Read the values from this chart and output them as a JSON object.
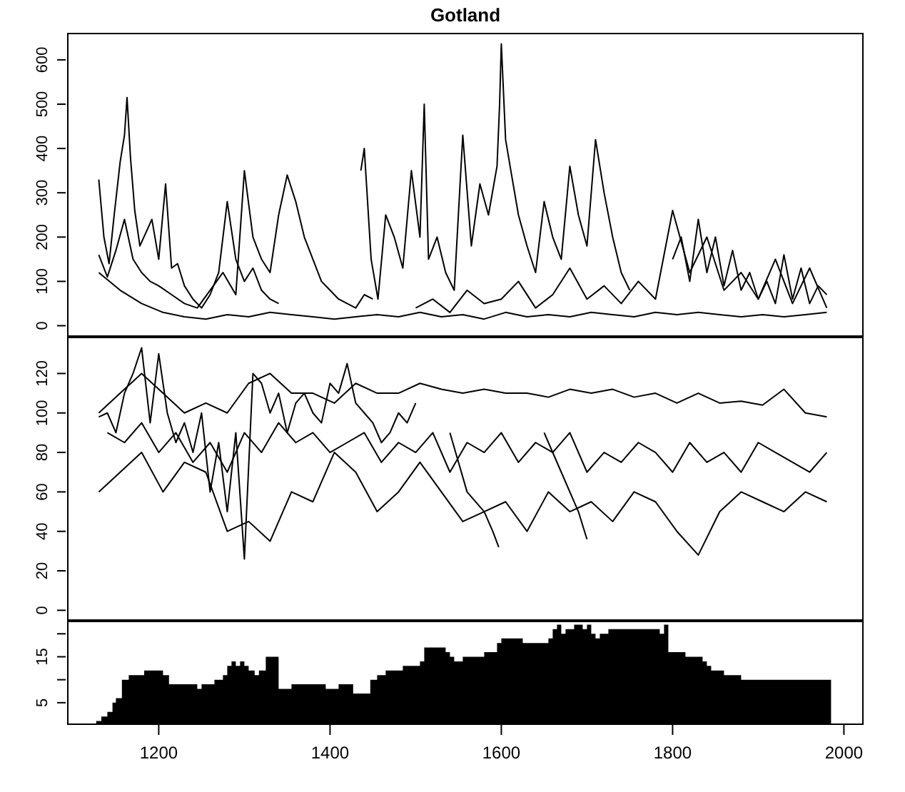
{
  "chart_data": [
    {
      "type": "line",
      "title": "Gotland",
      "xlim": [
        1093,
        2023
      ],
      "ylim": [
        -25,
        661
      ],
      "yticks": [
        0,
        100,
        200,
        300,
        400,
        500,
        600
      ],
      "tick_labels": "y",
      "series": [
        {
          "color": "#000000",
          "x": [
            1130,
            1136,
            1142,
            1148,
            1155,
            1160,
            1163,
            1167,
            1172,
            1178,
            1185,
            1192,
            1200,
            1208,
            1215,
            1222,
            1230,
            1240,
            1250,
            1260,
            1270,
            1280,
            1290,
            1300,
            1310,
            1320,
            1330,
            1340
          ],
          "values": [
            330,
            200,
            140,
            250,
            370,
            430,
            515,
            380,
            260,
            180,
            210,
            240,
            150,
            320,
            130,
            140,
            90,
            60,
            40,
            70,
            120,
            280,
            150,
            100,
            130,
            80,
            60,
            50
          ]
        },
        {
          "color": "#000000",
          "x": [
            1130,
            1140,
            1150,
            1160,
            1170,
            1180,
            1190,
            1200,
            1215,
            1230,
            1245,
            1260,
            1275,
            1290,
            1300,
            1310,
            1320,
            1330,
            1340,
            1350,
            1360,
            1370,
            1380,
            1390,
            1400,
            1410,
            1420,
            1430,
            1440,
            1450
          ],
          "values": [
            160,
            110,
            170,
            240,
            150,
            120,
            100,
            90,
            70,
            50,
            40,
            80,
            120,
            70,
            350,
            200,
            150,
            120,
            250,
            340,
            280,
            200,
            150,
            100,
            80,
            60,
            50,
            40,
            70,
            60
          ]
        },
        {
          "color": "#000000",
          "x": [
            1436,
            1440,
            1448,
            1456,
            1465,
            1475,
            1485,
            1495,
            1505,
            1510,
            1515,
            1525,
            1535,
            1545,
            1555,
            1565,
            1575,
            1585,
            1595,
            1598,
            1600,
            1605,
            1612,
            1620,
            1630,
            1640,
            1650,
            1660,
            1670,
            1680,
            1690,
            1700,
            1710,
            1720,
            1730,
            1740,
            1750
          ],
          "values": [
            350,
            400,
            150,
            60,
            250,
            200,
            130,
            350,
            200,
            500,
            150,
            200,
            120,
            80,
            430,
            180,
            320,
            250,
            360,
            500,
            636,
            420,
            340,
            250,
            180,
            120,
            280,
            200,
            150,
            360,
            250,
            180,
            420,
            300,
            200,
            120,
            80
          ]
        },
        {
          "color": "#000000",
          "x": [
            1500,
            1520,
            1540,
            1560,
            1580,
            1600,
            1620,
            1640,
            1660,
            1680,
            1700,
            1720,
            1740,
            1760,
            1780,
            1800,
            1820,
            1840,
            1860,
            1880,
            1900,
            1920,
            1940,
            1960,
            1980
          ],
          "values": [
            40,
            60,
            30,
            80,
            50,
            60,
            100,
            40,
            70,
            130,
            60,
            90,
            50,
            100,
            60,
            260,
            120,
            200,
            80,
            120,
            60,
            150,
            50,
            130,
            40
          ]
        },
        {
          "color": "#000000",
          "x": [
            1130,
            1155,
            1180,
            1205,
            1230,
            1255,
            1280,
            1305,
            1330,
            1355,
            1380,
            1405,
            1430,
            1455,
            1480,
            1505,
            1530,
            1555,
            1580,
            1605,
            1630,
            1655,
            1680,
            1705,
            1730,
            1755,
            1780,
            1805,
            1830,
            1855,
            1880,
            1905,
            1930,
            1955,
            1980
          ],
          "values": [
            120,
            80,
            50,
            30,
            20,
            15,
            25,
            20,
            30,
            25,
            20,
            15,
            20,
            25,
            20,
            30,
            20,
            25,
            15,
            30,
            20,
            25,
            20,
            30,
            25,
            20,
            30,
            25,
            30,
            25,
            20,
            25,
            20,
            25,
            30
          ]
        },
        {
          "color": "#000000",
          "x": [
            1800,
            1810,
            1820,
            1830,
            1840,
            1850,
            1860,
            1870,
            1880,
            1890,
            1900,
            1910,
            1920,
            1930,
            1940,
            1950,
            1960,
            1970,
            1980
          ],
          "values": [
            150,
            200,
            100,
            240,
            120,
            200,
            90,
            170,
            80,
            120,
            60,
            100,
            50,
            160,
            60,
            130,
            50,
            90,
            70
          ]
        }
      ]
    },
    {
      "type": "line",
      "xlim": [
        1093,
        2023
      ],
      "ylim": [
        -5.3,
        138.6
      ],
      "yticks": [
        0,
        20,
        40,
        60,
        80,
        100,
        120
      ],
      "tick_labels": "y",
      "series": [
        {
          "color": "#000000",
          "x": [
            1130,
            1140,
            1150,
            1160,
            1170,
            1180,
            1190,
            1200,
            1210,
            1220,
            1230,
            1240,
            1250,
            1260,
            1270,
            1280,
            1290,
            1300,
            1310,
            1320,
            1330,
            1340,
            1350,
            1360,
            1370,
            1380,
            1390,
            1400,
            1410,
            1420,
            1430,
            1440,
            1450,
            1460,
            1470,
            1480,
            1490,
            1500
          ],
          "values": [
            98,
            100,
            90,
            110,
            120,
            133,
            95,
            130,
            100,
            85,
            95,
            80,
            100,
            60,
            85,
            50,
            90,
            26,
            120,
            115,
            100,
            110,
            90,
            105,
            110,
            100,
            95,
            115,
            110,
            125,
            105,
            100,
            95,
            85,
            90,
            100,
            95,
            105
          ]
        },
        {
          "color": "#000000",
          "x": [
            1130,
            1155,
            1180,
            1205,
            1230,
            1255,
            1280,
            1305,
            1330,
            1355,
            1380,
            1405,
            1430,
            1455,
            1480,
            1505,
            1530,
            1555,
            1580,
            1605,
            1630,
            1655,
            1680,
            1705,
            1730,
            1755,
            1780,
            1805,
            1830,
            1855,
            1880,
            1905,
            1930,
            1955,
            1980
          ],
          "values": [
            60,
            70,
            80,
            60,
            75,
            70,
            40,
            45,
            35,
            60,
            55,
            80,
            70,
            50,
            60,
            75,
            60,
            45,
            50,
            55,
            40,
            60,
            50,
            55,
            45,
            60,
            55,
            40,
            28,
            50,
            60,
            55,
            50,
            60,
            55
          ]
        },
        {
          "color": "#000000",
          "x": [
            1130,
            1155,
            1180,
            1205,
            1230,
            1255,
            1280,
            1305,
            1330,
            1355,
            1380,
            1405,
            1430,
            1455,
            1480,
            1505,
            1530,
            1555,
            1580,
            1605,
            1630,
            1655,
            1680,
            1705,
            1730,
            1755,
            1780,
            1805,
            1830,
            1855,
            1880,
            1905,
            1930,
            1955,
            1980
          ],
          "values": [
            100,
            110,
            120,
            110,
            100,
            105,
            100,
            115,
            120,
            110,
            110,
            105,
            115,
            110,
            110,
            115,
            112,
            110,
            112,
            110,
            110,
            108,
            112,
            110,
            112,
            108,
            110,
            105,
            110,
            105,
            106,
            104,
            112,
            100,
            98
          ]
        },
        {
          "color": "#000000",
          "x": [
            1140,
            1160,
            1180,
            1200,
            1220,
            1240,
            1260,
            1280,
            1300,
            1320,
            1340,
            1360,
            1380,
            1400,
            1420,
            1440,
            1460,
            1480,
            1500,
            1520,
            1540,
            1560,
            1580,
            1600,
            1620,
            1640,
            1660,
            1680,
            1700,
            1720,
            1740,
            1760,
            1780,
            1800,
            1820,
            1840,
            1860,
            1880,
            1900,
            1920,
            1940,
            1960,
            1980
          ],
          "values": [
            90,
            85,
            95,
            80,
            90,
            75,
            85,
            70,
            90,
            80,
            95,
            85,
            90,
            80,
            85,
            90,
            75,
            85,
            80,
            90,
            70,
            85,
            80,
            90,
            75,
            85,
            80,
            90,
            70,
            80,
            75,
            85,
            80,
            70,
            85,
            75,
            80,
            70,
            85,
            80,
            75,
            70,
            80
          ]
        },
        {
          "color": "#000000",
          "x": [
            1540,
            1560,
            1580,
            1590,
            1597
          ],
          "values": [
            90,
            60,
            50,
            40,
            32
          ]
        },
        {
          "color": "#000000",
          "x": [
            1650,
            1670,
            1690,
            1700
          ],
          "values": [
            90,
            70,
            50,
            36
          ]
        }
      ]
    },
    {
      "type": "area",
      "xlim": [
        1093,
        2023
      ],
      "xticks": [
        1200,
        1400,
        1600,
        1800,
        2000
      ],
      "ylim": [
        0.16,
        22.84
      ],
      "yticks": [
        {
          "value": 5,
          "label": "5"
        },
        {
          "value": 10,
          "label": null
        },
        {
          "value": 15,
          "label": "15"
        },
        {
          "value": 20,
          "label": null
        }
      ],
      "series": [
        {
          "color": "#000000",
          "x": [
            1127,
            1133,
            1140,
            1146,
            1150,
            1157,
            1165,
            1183,
            1205,
            1212,
            1245,
            1250,
            1265,
            1275,
            1280,
            1285,
            1290,
            1295,
            1300,
            1305,
            1312,
            1317,
            1325,
            1340,
            1355,
            1395,
            1410,
            1427,
            1447,
            1455,
            1465,
            1485,
            1505,
            1510,
            1535,
            1540,
            1545,
            1555,
            1580,
            1595,
            1600,
            1625,
            1655,
            1660,
            1665,
            1670,
            1675,
            1685,
            1695,
            1700,
            1705,
            1710,
            1715,
            1725,
            1785,
            1790,
            1795,
            1815,
            1835,
            1840,
            1845,
            1860,
            1880,
            1985
          ],
          "values": [
            1,
            2,
            3,
            5,
            6,
            10,
            11,
            12,
            11,
            9,
            8,
            9,
            10,
            11,
            13,
            14,
            13,
            14,
            13,
            12,
            11,
            12,
            15,
            8,
            9,
            8,
            9,
            7,
            10,
            11,
            12,
            13,
            14,
            17,
            16,
            15,
            14,
            15,
            16,
            18,
            19,
            18,
            19,
            21,
            22,
            20,
            21,
            22,
            21,
            22,
            20,
            19,
            20,
            21,
            20,
            22,
            16,
            15,
            14,
            13,
            12,
            11,
            10,
            2
          ]
        }
      ]
    }
  ]
}
